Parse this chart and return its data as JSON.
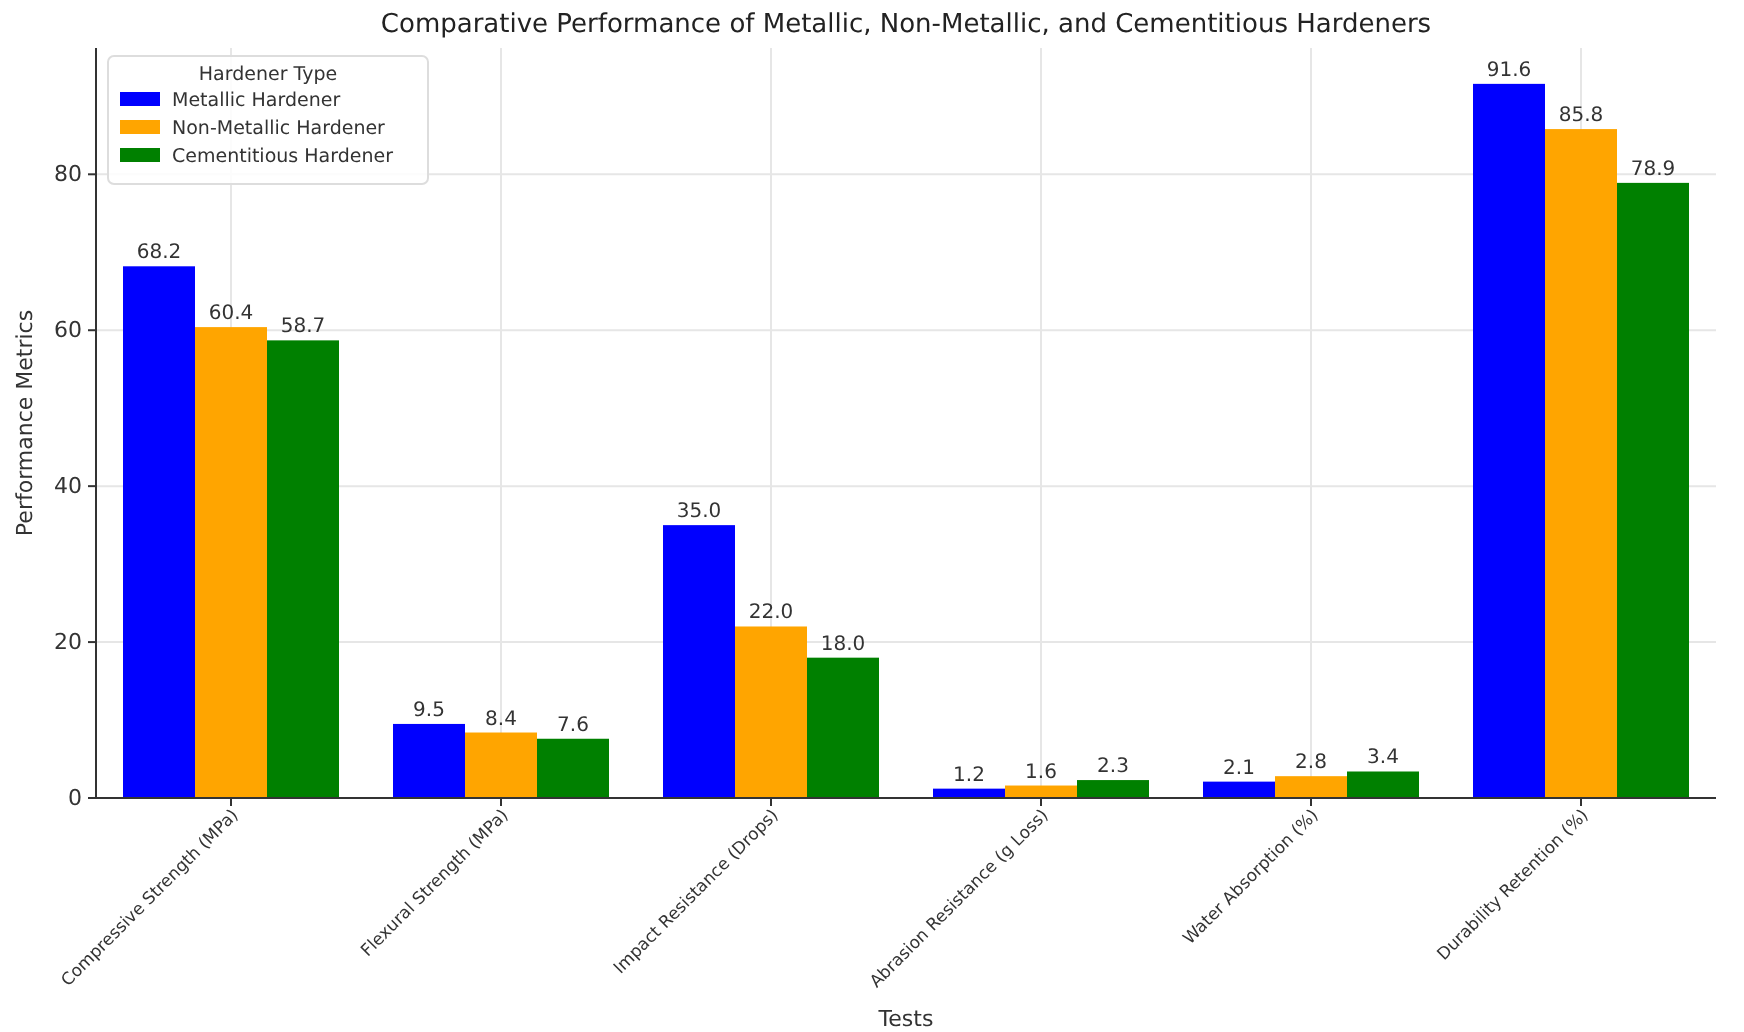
{
  "chart_data": {
    "type": "bar",
    "title": "Comparative Performance of Metallic, Non-Metallic, and Cementitious Hardeners",
    "xlabel": "Tests",
    "ylabel": "Performance Metrics",
    "legend_title": "Hardener Type",
    "categories": [
      "Compressive Strength (MPa)",
      "Flexural Strength (MPa)",
      "Impact Resistance (Drops)",
      "Abrasion Resistance (g Loss)",
      "Water Absorption (%)",
      "Durability Retention (%)"
    ],
    "series": [
      {
        "name": "Metallic Hardener",
        "color": "#0000ff",
        "values": [
          68.2,
          9.5,
          35.0,
          1.2,
          2.1,
          91.6
        ],
        "value_labels": [
          "68.2",
          "9.5",
          "35.0",
          "1.2",
          "2.1",
          "91.6"
        ]
      },
      {
        "name": "Non-Metallic Hardener",
        "color": "#ffa500",
        "values": [
          60.4,
          8.4,
          22.0,
          1.6,
          2.8,
          85.8
        ],
        "value_labels": [
          "60.4",
          "8.4",
          "22.0",
          "1.6",
          "2.8",
          "85.8"
        ]
      },
      {
        "name": "Cementitious Hardener",
        "color": "#008000",
        "values": [
          58.7,
          7.6,
          18.0,
          2.3,
          3.4,
          78.9
        ],
        "value_labels": [
          "58.7",
          "7.6",
          "18.0",
          "2.3",
          "3.4",
          "78.9"
        ]
      }
    ],
    "ylim": [
      0,
      96.2
    ],
    "yticks": [
      0,
      20,
      40,
      60,
      80
    ],
    "grid": true,
    "legend": "top left"
  }
}
